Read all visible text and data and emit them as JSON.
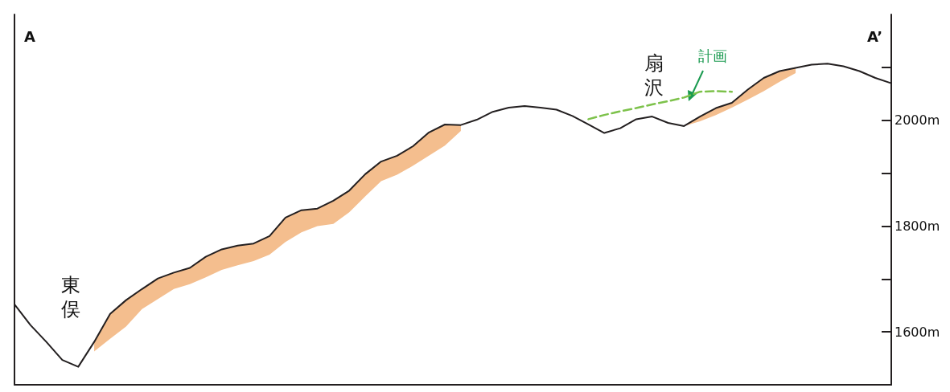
{
  "chart_data": {
    "type": "line",
    "categories": [
      null,
      null,
      null,
      null,
      null,
      null,
      null,
      null,
      null,
      null,
      null,
      null,
      null,
      null,
      null,
      null,
      null,
      null,
      null,
      null,
      null,
      null,
      null,
      null,
      null,
      null,
      null,
      null,
      null,
      null,
      null,
      null,
      null,
      null,
      null,
      null,
      null,
      null,
      null,
      null,
      null,
      null,
      null,
      null,
      null,
      null,
      null,
      null,
      null,
      null,
      null,
      null,
      null,
      null,
      null,
      null
    ],
    "series": [
      {
        "color": "#231f20",
        "line_style": "solid",
        "values": [
          1652,
          1613,
          1581,
          1547,
          1534,
          1581,
          1634,
          1660,
          1681,
          1701,
          1712,
          1721,
          1742,
          1756,
          1763,
          1767,
          1781,
          1816,
          1830,
          1833,
          1848,
          1867,
          1898,
          1922,
          1933,
          1951,
          1977,
          1992,
          1991,
          2001,
          2016,
          2024,
          2027,
          2024,
          2020,
          2008,
          1992,
          1976,
          1985,
          2002,
          2007,
          1995,
          1989,
          2007,
          2023,
          2033,
          2058,
          2080,
          2093,
          2099,
          2105,
          2107,
          2102,
          2093,
          2080,
          2070
        ],
        "upper": [
          null,
          null,
          null,
          null,
          null,
          1581,
          1634,
          1660,
          1681,
          1701,
          1712,
          1721,
          1742,
          1756,
          1763,
          1767,
          1781,
          1816,
          1830,
          1833,
          1848,
          1867,
          1898,
          1922,
          1933,
          1951,
          1977,
          1992,
          1991,
          null,
          null,
          null,
          null,
          null,
          null,
          null,
          null,
          null,
          null,
          null,
          null,
          null,
          1989,
          2007,
          2023,
          2033,
          2058,
          2080,
          2093,
          2099,
          null,
          null,
          null,
          null,
          null,
          null
        ],
        "lower": [
          null,
          null,
          null,
          null,
          null,
          1563,
          1587,
          1610,
          1643,
          1662,
          1681,
          1690,
          1703,
          1717,
          1726,
          1734,
          1746,
          1770,
          1788,
          1800,
          1804,
          1826,
          1856,
          1885,
          1897,
          1914,
          1933,
          1952,
          1980,
          null,
          null,
          null,
          null,
          null,
          null,
          null,
          null,
          null,
          null,
          null,
          null,
          null,
          1989,
          1998,
          2010,
          2024,
          2039,
          2055,
          2073,
          2089,
          null,
          null,
          null,
          null,
          null,
          null
        ]
      },
      {
        "name": "計画",
        "color": "#7dc24b",
        "line_style": "dashed",
        "values": [
          null,
          null,
          null,
          null,
          null,
          null,
          null,
          null,
          null,
          null,
          null,
          null,
          null,
          null,
          null,
          null,
          null,
          null,
          null,
          null,
          null,
          null,
          null,
          null,
          null,
          null,
          null,
          null,
          null,
          null,
          null,
          null,
          null,
          null,
          null,
          null,
          2002,
          2010,
          2017,
          2023,
          2030,
          2036,
          2043,
          2054,
          2055,
          2054,
          null,
          null,
          null,
          null,
          null,
          null,
          null,
          null,
          null,
          null
        ]
      }
    ],
    "annotations": [
      "A",
      "A’",
      "東俣",
      "扇沢"
    ],
    "ylim": [
      1500,
      2200
    ],
    "yticks": [
      {
        "value": 1600,
        "label": "1600m"
      },
      {
        "value": 1700,
        "label": null
      },
      {
        "value": 1800,
        "label": "1800m"
      },
      {
        "value": 1900,
        "label": null
      },
      {
        "value": 2000,
        "label": "2000m"
      },
      {
        "value": 2100,
        "label": null
      }
    ],
    "tick_labels": "y",
    "grid": false,
    "legend": false,
    "marker": "none"
  }
}
